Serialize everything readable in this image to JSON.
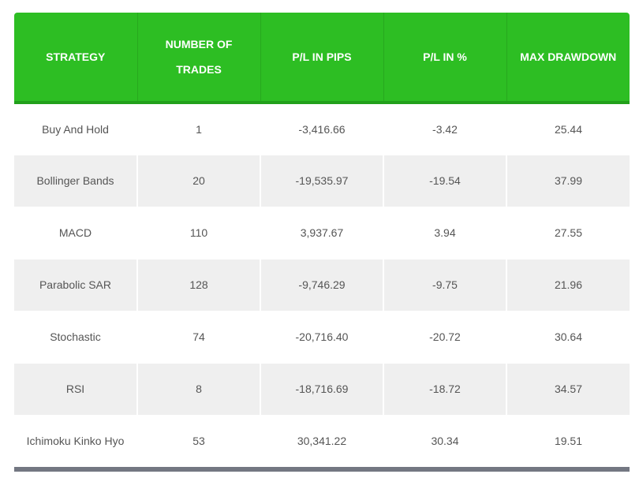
{
  "table": {
    "header": [
      "STRATEGY",
      "NUMBER OF TRADES",
      "P/L IN PIPS",
      "P/L IN %",
      "MAX DRAWDOWN"
    ],
    "rows": [
      [
        "Buy And Hold",
        "1",
        "-3,416.66",
        "-3.42",
        "25.44"
      ],
      [
        "Bollinger Bands",
        "20",
        "-19,535.97",
        "-19.54",
        "37.99"
      ],
      [
        "MACD",
        "110",
        "3,937.67",
        "3.94",
        "27.55"
      ],
      [
        "Parabolic SAR",
        "128",
        "-9,746.29",
        "-9.75",
        "21.96"
      ],
      [
        "Stochastic",
        "74",
        "-20,716.40",
        "-20.72",
        "30.64"
      ],
      [
        "RSI",
        "8",
        "-18,716.69",
        "-18.72",
        "34.57"
      ],
      [
        "Ichimoku Kinko Hyo",
        "53",
        "30,341.22",
        "30.34",
        "19.51"
      ]
    ]
  }
}
